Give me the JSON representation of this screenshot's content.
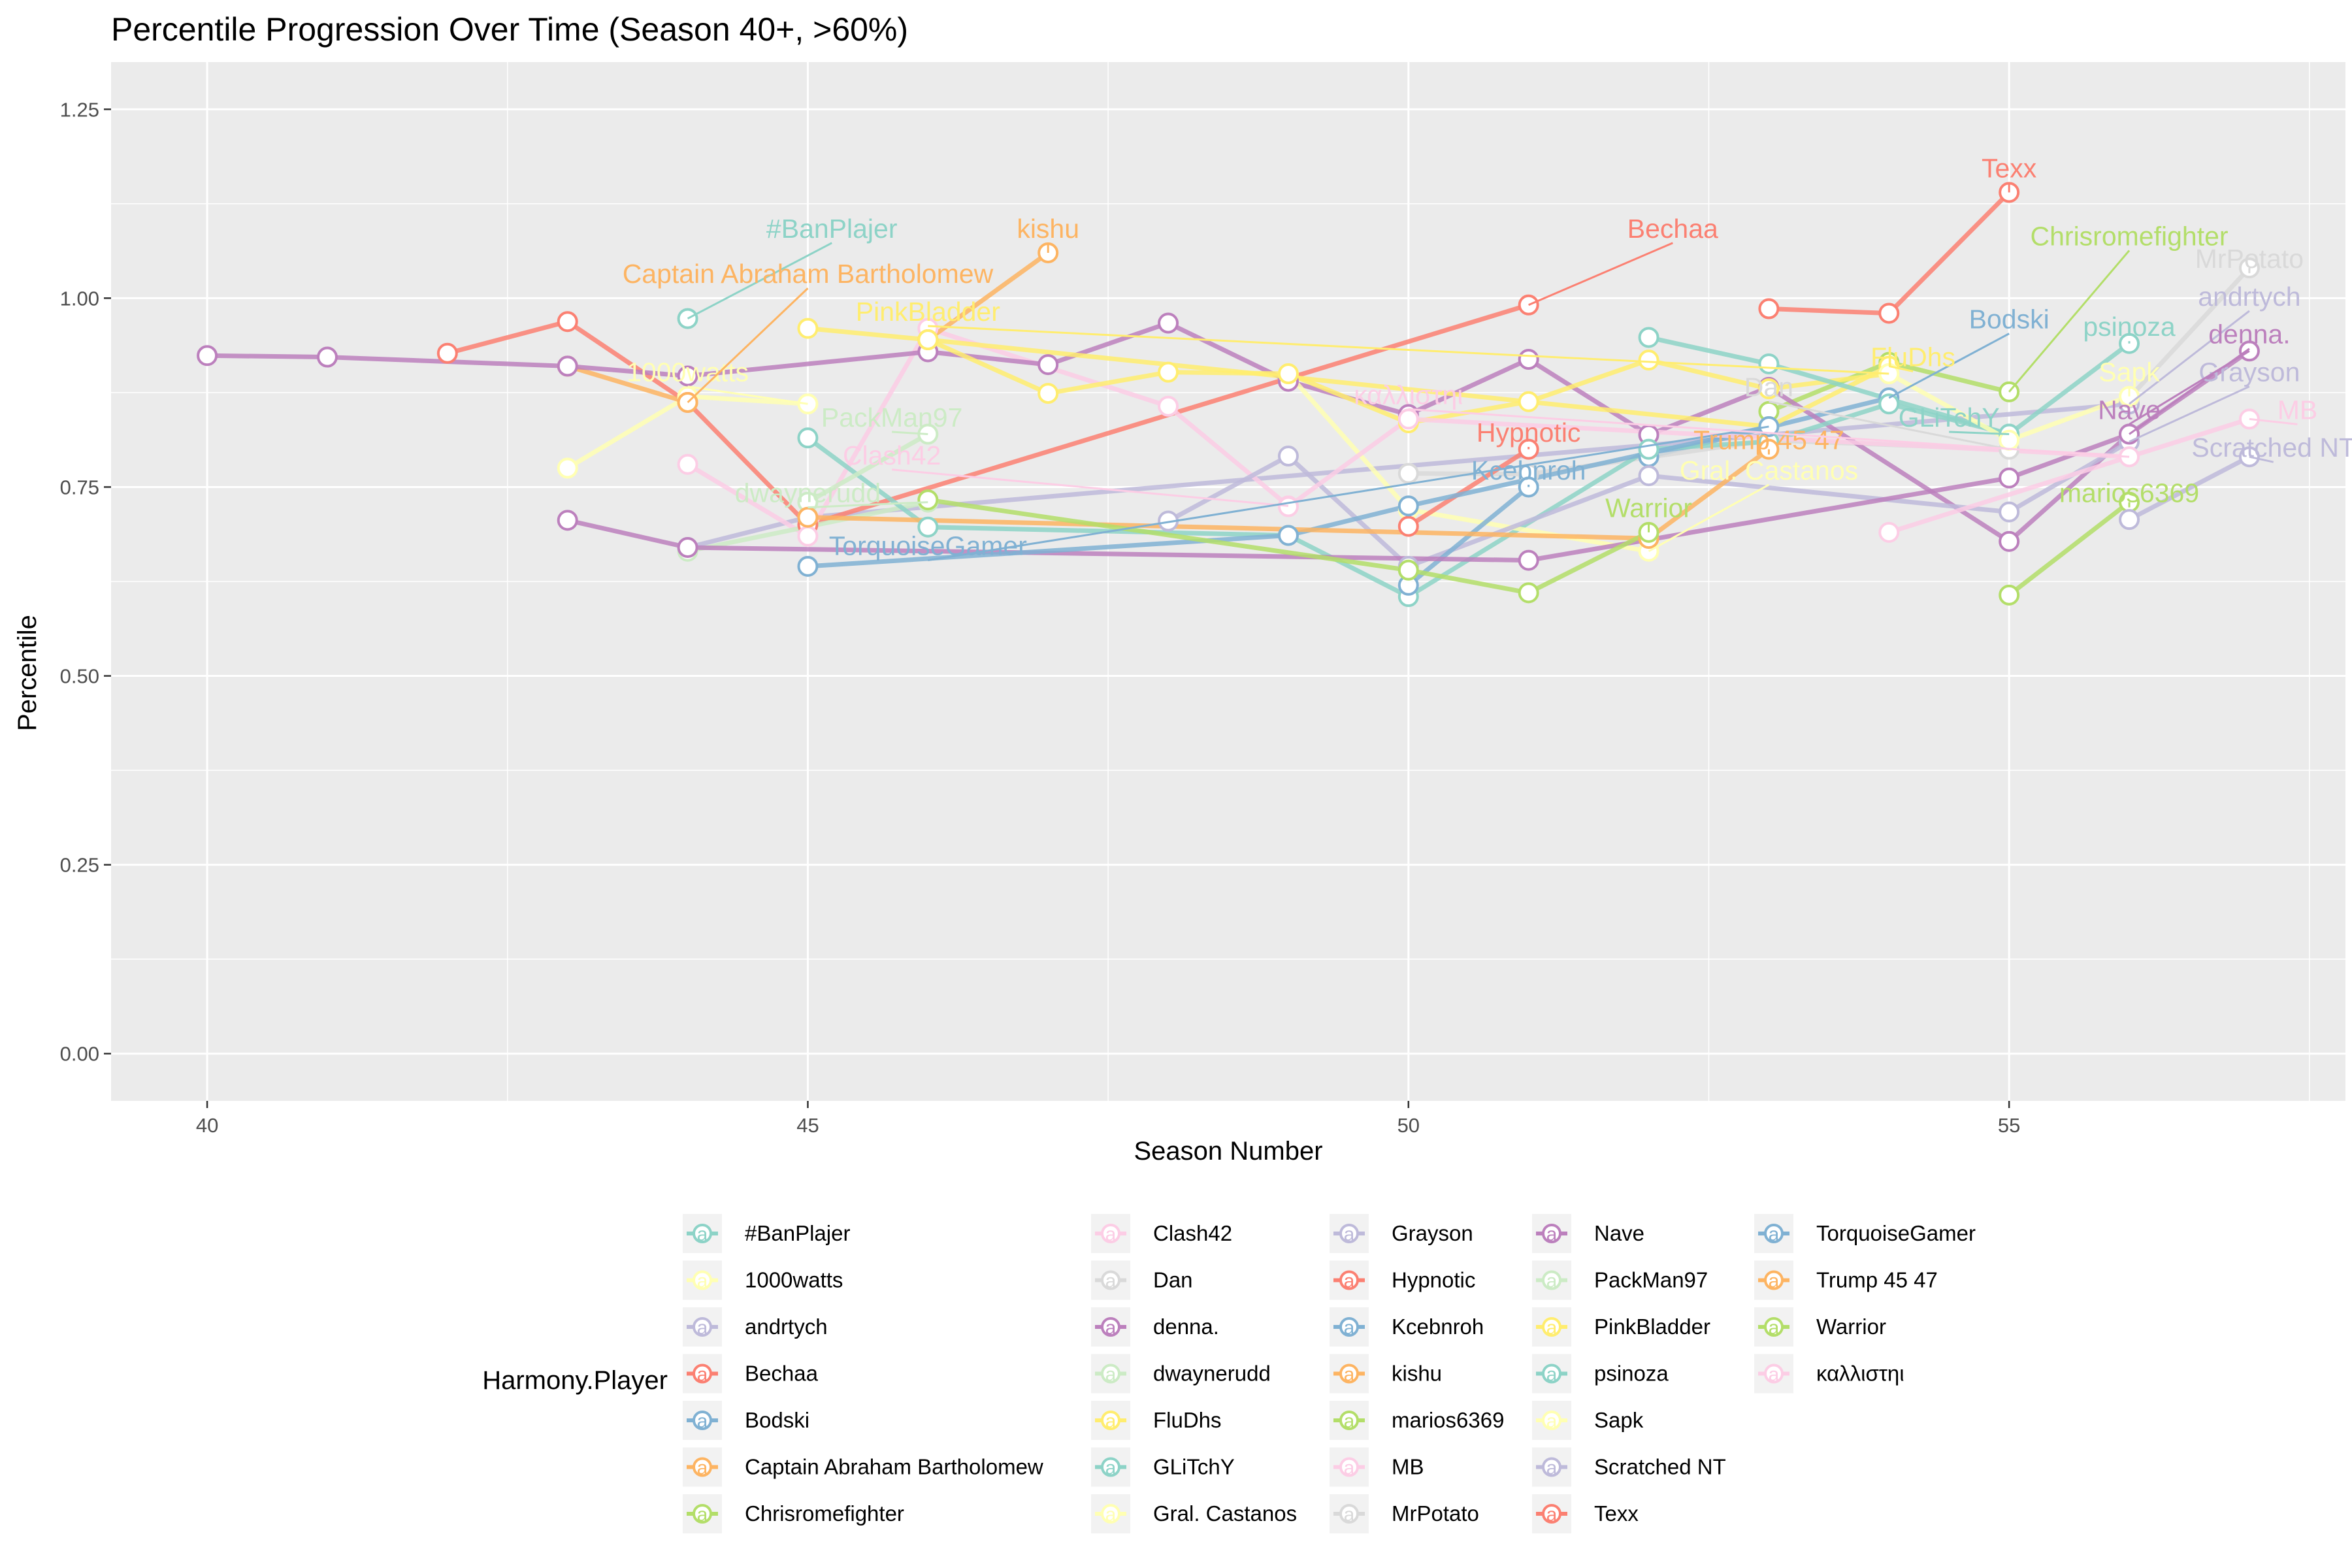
{
  "chart_data": {
    "type": "line",
    "title": "Percentile Progression Over Time (Season 40+, >60%)",
    "xlabel": "Season Number",
    "ylabel": "Percentile",
    "xlim": [
      39.2,
      57.8
    ],
    "ylim": [
      -0.0625,
      1.3125
    ],
    "xticks": [
      40,
      45,
      50,
      55
    ],
    "yticks": [
      0.0,
      0.25,
      0.5,
      0.75,
      1.0,
      1.25
    ],
    "xtick_labels": [
      "40",
      "45",
      "50",
      "55"
    ],
    "ytick_labels": [
      "0.00",
      "0.25",
      "0.50",
      "0.75",
      "1.00",
      "1.25"
    ],
    "grid": true,
    "legend": {
      "title": "Harmony.Player",
      "position": "bottom",
      "glyph": "a"
    },
    "series": [
      {
        "name": "#BanPlajer",
        "color": "#8DD3C7",
        "points": [
          [
            44,
            0.973
          ]
        ],
        "label": {
          "text": "#BanPlajer",
          "x": 45.2,
          "y": 1.08
        }
      },
      {
        "name": "1000watts",
        "color": "#FFFFB3",
        "points": [
          [
            43,
            0.775
          ],
          [
            44,
            0.87
          ],
          [
            45,
            0.86
          ]
        ],
        "label": {
          "text": "1000watts",
          "x": 44.0,
          "y": 0.89
        }
      },
      {
        "name": "andrtych",
        "color": "#BEBADA",
        "points": [
          [
            44,
            0.67
          ],
          [
            45,
            0.71
          ],
          [
            56,
            0.86
          ]
        ],
        "label": {
          "text": "andrtych",
          "x": 57.0,
          "y": 0.99
        }
      },
      {
        "name": "Bechaa",
        "color": "#FB8072",
        "points": [
          [
            42,
            0.927
          ],
          [
            43,
            0.969
          ],
          [
            44,
            0.862
          ],
          [
            45,
            0.7
          ],
          [
            51,
            0.991
          ]
        ],
        "label": {
          "text": "Bechaa",
          "x": 52.2,
          "y": 1.08
        }
      },
      {
        "name": "Bodski",
        "color": "#80B1D3",
        "points": [
          [
            52,
            0.79
          ],
          [
            54,
            0.868
          ]
        ],
        "label": {
          "text": "Bodski",
          "x": 55.0,
          "y": 0.96
        }
      },
      {
        "name": "Captain Abraham Bartholomew",
        "color": "#FDB462",
        "points": [
          [
            43,
            0.91
          ],
          [
            44,
            0.862
          ]
        ],
        "label": {
          "text": "Captain Abraham Bartholomew",
          "x": 45.0,
          "y": 1.02
        }
      },
      {
        "name": "Chrisromefighter",
        "color": "#B3DE69",
        "points": [
          [
            53,
            0.85
          ],
          [
            54,
            0.915
          ],
          [
            55,
            0.876
          ]
        ],
        "label": {
          "text": "Chrisromefighter",
          "x": 56.0,
          "y": 1.07
        }
      },
      {
        "name": "Clash42",
        "color": "#FCCDE5",
        "points": [
          [
            44,
            0.78
          ],
          [
            45,
            0.685
          ],
          [
            46,
            0.96
          ],
          [
            48,
            0.857
          ],
          [
            49,
            0.725
          ]
        ],
        "label": {
          "text": "Clash42",
          "x": 45.7,
          "y": 0.78
        }
      },
      {
        "name": "Dan",
        "color": "#D9D9D9",
        "points": [
          [
            50,
            0.768
          ],
          [
            51,
            0.767
          ],
          [
            53,
            0.812
          ],
          [
            55,
            0.8
          ]
        ],
        "label": {
          "text": "Dan",
          "x": 53.0,
          "y": 0.87
        }
      },
      {
        "name": "denna.",
        "color": "#BC80BD",
        "points": [
          [
            40,
            0.924
          ],
          [
            41,
            0.922
          ],
          [
            43,
            0.91
          ],
          [
            44,
            0.897
          ],
          [
            46,
            0.929
          ],
          [
            47,
            0.912
          ],
          [
            48,
            0.967
          ],
          [
            49,
            0.89
          ],
          [
            50,
            0.846
          ],
          [
            51,
            0.919
          ],
          [
            52,
            0.819
          ],
          [
            53,
            0.882
          ],
          [
            55,
            0.678
          ],
          [
            56,
            0.82
          ]
        ],
        "label": {
          "text": "denna.",
          "x": 57.0,
          "y": 0.94
        }
      },
      {
        "name": "dwaynerudd",
        "color": "#CCEBC5",
        "points": [
          [
            44,
            0.665
          ],
          [
            46,
            0.73
          ]
        ],
        "label": {
          "text": "dwaynerudd",
          "x": 45.0,
          "y": 0.73
        }
      },
      {
        "name": "FluDhs",
        "color": "#FFED6F",
        "points": [
          [
            45,
            0.96
          ],
          [
            46,
            0.945
          ],
          [
            53,
            0.83
          ],
          [
            54,
            0.91
          ]
        ],
        "label": {
          "text": "FluDhs",
          "x": 54.2,
          "y": 0.91
        }
      },
      {
        "name": "GLiTchY",
        "color": "#8DD3C7",
        "points": [
          [
            45,
            0.815
          ],
          [
            46,
            0.697
          ],
          [
            49,
            0.686
          ],
          [
            50,
            0.605
          ],
          [
            52,
            0.8
          ],
          [
            53,
            0.81
          ],
          [
            54,
            0.86
          ],
          [
            55,
            0.82
          ]
        ],
        "label": {
          "text": "GLiTchY",
          "x": 54.5,
          "y": 0.83
        }
      },
      {
        "name": "Gral. Castanos",
        "color": "#FFFFB3",
        "points": [
          [
            49,
            0.9
          ],
          [
            50,
            0.72
          ],
          [
            52,
            0.665
          ]
        ],
        "label": {
          "text": "Gral. Castanos",
          "x": 53.0,
          "y": 0.76
        }
      },
      {
        "name": "Grayson",
        "color": "#BEBADA",
        "points": [
          [
            48,
            0.705
          ],
          [
            49,
            0.791
          ],
          [
            50,
            0.645
          ],
          [
            52,
            0.765
          ],
          [
            55,
            0.717
          ],
          [
            56,
            0.81
          ]
        ],
        "label": {
          "text": "Grayson",
          "x": 57.0,
          "y": 0.89
        }
      },
      {
        "name": "Hypnotic",
        "color": "#FB8072",
        "points": [
          [
            50,
            0.698
          ],
          [
            51,
            0.8
          ]
        ],
        "label": {
          "text": "Hypnotic",
          "x": 51.0,
          "y": 0.81
        }
      },
      {
        "name": "Kcebnroh",
        "color": "#80B1D3",
        "points": [
          [
            50,
            0.62
          ],
          [
            51,
            0.75
          ]
        ],
        "label": {
          "text": "Kcebnroh",
          "x": 51.0,
          "y": 0.76
        }
      },
      {
        "name": "kishu",
        "color": "#FDB462",
        "points": [
          [
            46,
            0.945
          ],
          [
            47,
            1.06
          ]
        ],
        "label": {
          "text": "kishu",
          "x": 47.0,
          "y": 1.08
        }
      },
      {
        "name": "marios6369",
        "color": "#B3DE69",
        "points": [
          [
            55,
            0.607
          ],
          [
            56,
            0.73
          ]
        ],
        "label": {
          "text": "marios6369",
          "x": 56.0,
          "y": 0.73
        }
      },
      {
        "name": "MB",
        "color": "#FCCDE5",
        "points": [
          [
            54,
            0.69
          ],
          [
            56,
            0.79
          ],
          [
            57,
            0.84
          ]
        ],
        "label": {
          "text": "MB",
          "x": 57.4,
          "y": 0.84
        }
      },
      {
        "name": "MrPotato",
        "color": "#D9D9D9",
        "points": [
          [
            56,
            0.868
          ],
          [
            57,
            1.04
          ]
        ],
        "label": {
          "text": "MrPotato",
          "x": 57.0,
          "y": 1.04
        }
      },
      {
        "name": "Nave",
        "color": "#BC80BD",
        "points": [
          [
            43,
            0.706
          ],
          [
            44,
            0.67
          ],
          [
            51,
            0.653
          ],
          [
            55,
            0.762
          ],
          [
            56,
            0.82
          ],
          [
            57,
            0.93
          ]
        ],
        "label": {
          "text": "Nave",
          "x": 56.0,
          "y": 0.84
        }
      },
      {
        "name": "PackMan97",
        "color": "#CCEBC5",
        "points": [
          [
            45,
            0.73
          ],
          [
            46,
            0.82
          ]
        ],
        "label": {
          "text": "PackMan97",
          "x": 45.7,
          "y": 0.83
        }
      },
      {
        "name": "PinkBladder",
        "color": "#FFED6F",
        "points": [
          [
            46,
            0.945
          ],
          [
            47,
            0.874
          ],
          [
            48,
            0.902
          ],
          [
            49,
            0.9
          ],
          [
            50,
            0.835
          ],
          [
            51,
            0.863
          ],
          [
            52,
            0.918
          ],
          [
            53,
            0.88
          ],
          [
            54,
            0.9
          ]
        ],
        "label": {
          "text": "PinkBladder",
          "x": 46.0,
          "y": 0.97
        }
      },
      {
        "name": "psinoza",
        "color": "#8DD3C7",
        "points": [
          [
            52,
            0.948
          ],
          [
            53,
            0.913
          ],
          [
            55,
            0.82
          ],
          [
            56,
            0.94
          ]
        ],
        "label": {
          "text": "psinoza",
          "x": 56.0,
          "y": 0.95
        }
      },
      {
        "name": "Sapk",
        "color": "#FFFFB3",
        "points": [
          [
            54,
            0.9
          ],
          [
            55,
            0.812
          ],
          [
            56,
            0.87
          ]
        ],
        "label": {
          "text": "Sapk",
          "x": 56.0,
          "y": 0.89
        }
      },
      {
        "name": "Scratched NT",
        "color": "#BEBADA",
        "points": [
          [
            56,
            0.707
          ],
          [
            57,
            0.79
          ]
        ],
        "label": {
          "text": "Scratched NT",
          "x": 57.2,
          "y": 0.79
        }
      },
      {
        "name": "Texx",
        "color": "#FB8072",
        "points": [
          [
            53,
            0.986
          ],
          [
            54,
            0.98
          ],
          [
            55,
            1.14
          ]
        ],
        "label": {
          "text": "Texx",
          "x": 55.0,
          "y": 1.16
        }
      },
      {
        "name": "TorquoiseGamer",
        "color": "#80B1D3",
        "points": [
          [
            45,
            0.645
          ],
          [
            49,
            0.686
          ],
          [
            50,
            0.725
          ],
          [
            53,
            0.83
          ]
        ],
        "label": {
          "text": "TorquoiseGamer",
          "x": 46.0,
          "y": 0.66
        }
      },
      {
        "name": "Trump 45 47",
        "color": "#FDB462",
        "points": [
          [
            45,
            0.71
          ],
          [
            52,
            0.682
          ],
          [
            53,
            0.8
          ]
        ],
        "label": {
          "text": "Trump 45 47",
          "x": 53.0,
          "y": 0.8
        }
      },
      {
        "name": "Warrior",
        "color": "#B3DE69",
        "points": [
          [
            46,
            0.733
          ],
          [
            50,
            0.64
          ],
          [
            51,
            0.61
          ],
          [
            52,
            0.69
          ]
        ],
        "label": {
          "text": "Warrior",
          "x": 52.0,
          "y": 0.71
        }
      },
      {
        "name": "καλλιστηι",
        "color": "#FCCDE5",
        "points": [
          [
            49,
            0.724
          ],
          [
            50,
            0.84
          ],
          [
            56,
            0.79
          ]
        ],
        "label": {
          "text": "καλλιστηι",
          "x": 50.0,
          "y": 0.86
        }
      }
    ]
  }
}
